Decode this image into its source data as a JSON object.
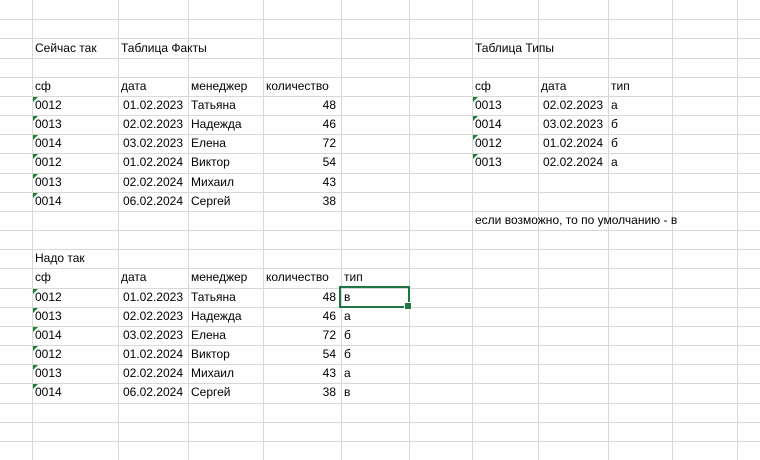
{
  "labels": {
    "current_approach": "Сейчас так",
    "facts_title": "Таблица Факты",
    "types_title": "Таблица Типы",
    "note": "если возможно, то по умолчанию - в",
    "target_approach": "Надо так"
  },
  "facts_table": {
    "headers": [
      "сф",
      "дата",
      "менеджер",
      "количество"
    ],
    "rows": [
      [
        "0012",
        "01.02.2023",
        "Татьяна",
        "48"
      ],
      [
        "0013",
        "02.02.2023",
        "Надежда",
        "46"
      ],
      [
        "0014",
        "03.02.2023",
        "Елена",
        "72"
      ],
      [
        "0012",
        "01.02.2024",
        "Виктор",
        "54"
      ],
      [
        "0013",
        "02.02.2024",
        "Михаил",
        "43"
      ],
      [
        "0014",
        "06.02.2024",
        "Сергей",
        "38"
      ]
    ]
  },
  "types_table": {
    "headers": [
      "сф",
      "дата",
      "тип"
    ],
    "rows": [
      [
        "0013",
        "02.02.2023",
        "а"
      ],
      [
        "0014",
        "03.02.2023",
        "б"
      ],
      [
        "0012",
        "01.02.2024",
        "б"
      ],
      [
        "0013",
        "02.02.2024",
        "а"
      ]
    ]
  },
  "target_table": {
    "headers": [
      "сф",
      "дата",
      "менеджер",
      "количество",
      "тип"
    ],
    "rows": [
      [
        "0012",
        "01.02.2023",
        "Татьяна",
        "48",
        "в"
      ],
      [
        "0013",
        "02.02.2023",
        "Надежда",
        "46",
        "а"
      ],
      [
        "0014",
        "03.02.2023",
        "Елена",
        "72",
        "б"
      ],
      [
        "0012",
        "01.02.2024",
        "Виктор",
        "54",
        "б"
      ],
      [
        "0013",
        "02.02.2024",
        "Михаил",
        "43",
        "а"
      ],
      [
        "0014",
        "06.02.2024",
        "Сергей",
        "38",
        "в"
      ]
    ]
  },
  "selection": {
    "value": "в",
    "table": "target_table",
    "row_index": 0,
    "column": "тип"
  },
  "colors": {
    "background": "#ffffff",
    "gridline": "#d8d8d8",
    "text": "#000000",
    "selection_border": "#217346",
    "error_triangle": "#1e7e34"
  }
}
